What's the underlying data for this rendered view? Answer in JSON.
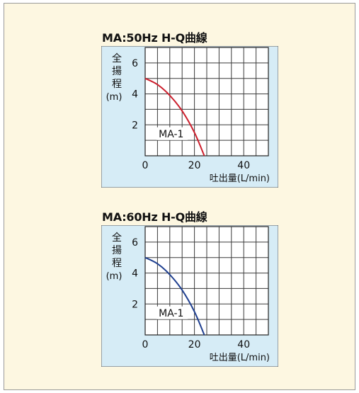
{
  "chart_data": [
    {
      "type": "line",
      "title": "MA:50Hz H-Q曲線",
      "xlabel": "吐出量(L/min)",
      "ylabel": [
        "全",
        "揚",
        "程",
        "(m)"
      ],
      "xlim": [
        0,
        50
      ],
      "ylim": [
        0,
        7
      ],
      "x_ticks": [
        0,
        20,
        40
      ],
      "y_ticks": [
        2,
        4,
        6
      ],
      "grid": true,
      "series": [
        {
          "name": "MA-1",
          "color": "#cc1f2d",
          "x": [
            0,
            5,
            10,
            15,
            20,
            24
          ],
          "y": [
            5.0,
            4.6,
            3.9,
            2.9,
            1.5,
            0
          ]
        }
      ]
    },
    {
      "type": "line",
      "title": "MA:60Hz H-Q曲線",
      "xlabel": "吐出量(L/min)",
      "ylabel": [
        "全",
        "揚",
        "程",
        "(m)"
      ],
      "xlim": [
        0,
        50
      ],
      "ylim": [
        0,
        7
      ],
      "x_ticks": [
        0,
        20,
        40
      ],
      "y_ticks": [
        2,
        4,
        6
      ],
      "grid": true,
      "series": [
        {
          "name": "MA-1",
          "color": "#1f3f8f",
          "x": [
            0,
            5,
            10,
            15,
            20,
            24
          ],
          "y": [
            5.0,
            4.6,
            3.9,
            2.9,
            1.5,
            0
          ]
        }
      ]
    }
  ],
  "colors": {
    "panel_bg": "#fdf7e1",
    "chart_bg": "#d6ecf6",
    "grid": "#3a3a3a"
  }
}
